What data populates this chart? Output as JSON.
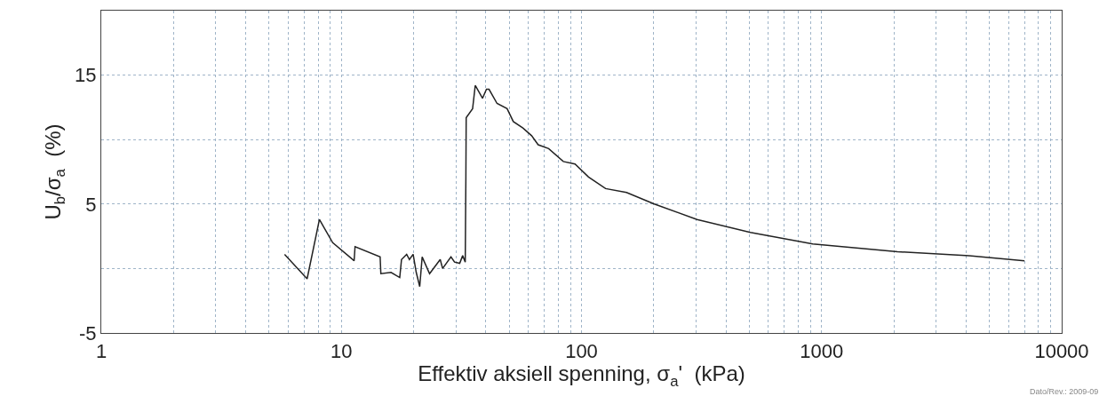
{
  "chart_data": {
    "type": "line",
    "xlabel": "Effektiv aksiell spenning, σ$_{a}$'  (kPa)",
    "ylabel": "U$_{b}$/σ$_{a}$  (%)",
    "annotations": [
      "Dato/Rev.: 2009-09"
    ],
    "log": "x",
    "grid": true,
    "marker": "none",
    "line_style": "solid",
    "xlim": [
      1,
      10000
    ],
    "xticks": [
      1,
      {
        "value": 2,
        "label": null
      },
      {
        "value": 3,
        "label": null
      },
      {
        "value": 4,
        "label": null
      },
      {
        "value": 5,
        "label": null
      },
      {
        "value": 6,
        "label": null
      },
      {
        "value": 7,
        "label": null
      },
      {
        "value": 8,
        "label": null
      },
      {
        "value": 9,
        "label": null
      },
      10,
      {
        "value": 20,
        "label": null
      },
      {
        "value": 30,
        "label": null
      },
      {
        "value": 40,
        "label": null
      },
      {
        "value": 50,
        "label": null
      },
      {
        "value": 60,
        "label": null
      },
      {
        "value": 70,
        "label": null
      },
      {
        "value": 80,
        "label": null
      },
      {
        "value": 90,
        "label": null
      },
      100,
      {
        "value": 200,
        "label": null
      },
      {
        "value": 300,
        "label": null
      },
      {
        "value": 400,
        "label": null
      },
      {
        "value": 500,
        "label": null
      },
      {
        "value": 600,
        "label": null
      },
      {
        "value": 700,
        "label": null
      },
      {
        "value": 800,
        "label": null
      },
      {
        "value": 900,
        "label": null
      },
      1000,
      {
        "value": 2000,
        "label": null
      },
      {
        "value": 3000,
        "label": null
      },
      {
        "value": 4000,
        "label": null
      },
      {
        "value": 5000,
        "label": null
      },
      {
        "value": 6000,
        "label": null
      },
      {
        "value": 7000,
        "label": null
      },
      {
        "value": 8000,
        "label": null
      },
      {
        "value": 9000,
        "label": null
      },
      10000
    ],
    "ylim": [
      -5,
      20
    ],
    "yticks": [
      -5,
      {
        "value": 0,
        "label": null
      },
      5,
      {
        "value": 10,
        "label": null
      },
      15
    ],
    "series": [
      {
        "color": "#222222",
        "x": [
          5.8,
          7.2,
          8.1,
          9.2,
          11.3,
          11.4,
          14.5,
          14.6,
          16.1,
          17.5,
          17.8,
          18.7,
          19.2,
          19.9,
          20.5,
          21.2,
          21.7,
          23.3,
          25.8,
          26.4,
          28.6,
          29.6,
          31.1,
          32.0,
          32.8,
          33.0,
          33.1,
          35.2,
          36.1,
          38.7,
          40.2,
          41.2,
          44.5,
          49,
          52,
          57,
          62,
          66,
          73,
          84,
          94,
          107,
          126,
          154,
          201,
          303,
          505,
          919,
          2070,
          4120,
          7000
        ],
        "values": [
          1.1,
          -0.8,
          3.8,
          2.0,
          0.6,
          1.7,
          0.9,
          -0.4,
          -0.3,
          -0.7,
          0.7,
          1.1,
          0.7,
          1.1,
          -0.3,
          -1.4,
          0.9,
          -0.4,
          0.7,
          0.0,
          0.9,
          0.5,
          0.4,
          1.0,
          0.5,
          7.1,
          11.7,
          12.4,
          14.2,
          13.2,
          13.9,
          13.9,
          12.8,
          12.4,
          11.4,
          10.9,
          10.3,
          9.6,
          9.3,
          8.3,
          8.1,
          7.1,
          6.2,
          5.9,
          5.0,
          3.8,
          2.8,
          1.9,
          1.3,
          1.0,
          0.6
        ]
      }
    ]
  }
}
